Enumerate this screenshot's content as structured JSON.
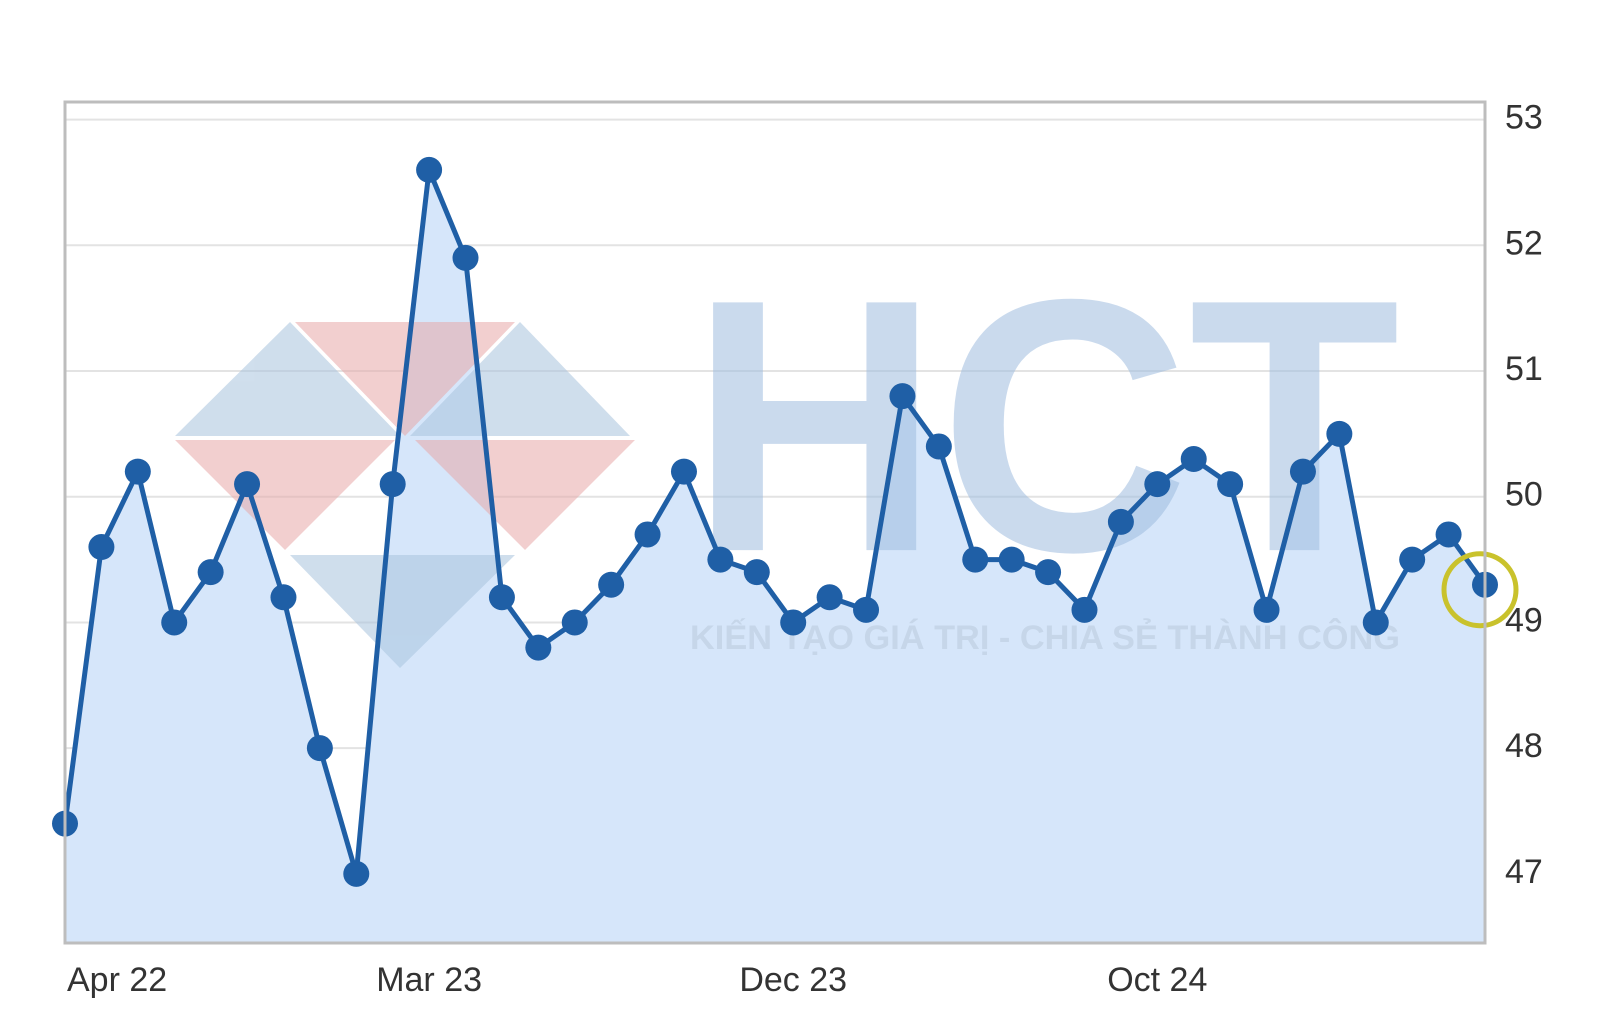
{
  "chart_data": {
    "type": "area-line",
    "categories": [
      "Apr 22",
      null,
      null,
      null,
      null,
      null,
      null,
      null,
      null,
      null,
      "Mar 23",
      null,
      null,
      null,
      null,
      null,
      null,
      null,
      null,
      null,
      "Dec 23",
      null,
      null,
      null,
      null,
      null,
      null,
      null,
      null,
      null,
      "Oct 24",
      null,
      null,
      null,
      null,
      null,
      null,
      null,
      null,
      null
    ],
    "series": [
      {
        "color": "#1f5fa6",
        "values": [
          47.4,
          49.6,
          50.2,
          49.0,
          49.4,
          50.1,
          49.2,
          48.0,
          47.0,
          50.1,
          52.6,
          51.9,
          49.2,
          48.8,
          49.0,
          49.3,
          49.7,
          50.2,
          49.5,
          49.4,
          49.0,
          49.2,
          49.1,
          50.8,
          50.4,
          49.5,
          49.5,
          49.4,
          49.1,
          49.8,
          50.1,
          50.3,
          50.1,
          49.1,
          50.2,
          50.5,
          49.0,
          49.5,
          49.7,
          49.3
        ]
      }
    ],
    "area_color": "#d6e6fa",
    "ylim": [
      46.45,
      53.14
    ],
    "yticks": [
      47,
      48,
      49,
      50,
      51,
      52,
      53
    ],
    "grid": true,
    "y_axis_side": "right",
    "highlight_last": true,
    "highlight_color": "#c9c22c",
    "watermark": {
      "logo": "HCT",
      "slogan": "KIẾN TẠO GIÁ TRỊ - CHIA SẺ THÀNH CÔNG"
    }
  }
}
